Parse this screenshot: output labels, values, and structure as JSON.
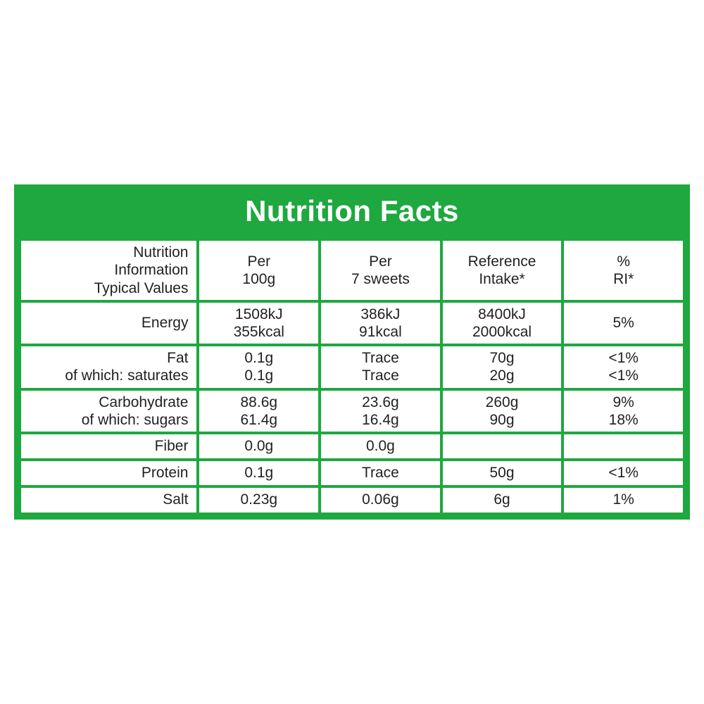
{
  "title": "Nutrition Facts",
  "colors": {
    "brand_green": "#1ea83f",
    "cell_bg": "#ffffff",
    "text": "#231f20"
  },
  "headers": {
    "label_l1": "Nutrition",
    "label_l2": "Information",
    "label_l3": "Typical Values",
    "per100_l1": "Per",
    "per100_l2": "100g",
    "perServ_l1": "Per",
    "perServ_l2": "7 sweets",
    "ref_l1": "Reference",
    "ref_l2": "Intake*",
    "ri_l1": "%",
    "ri_l2": "RI*"
  },
  "rows": {
    "energy": {
      "label": "Energy",
      "per100_l1": "1508kJ",
      "per100_l2": "355kcal",
      "perServ_l1": "386kJ",
      "perServ_l2": "91kcal",
      "ref_l1": "8400kJ",
      "ref_l2": "2000kcal",
      "ri": "5%"
    },
    "fat": {
      "label_l1": "Fat",
      "label_l2": "of which: saturates",
      "per100_l1": "0.1g",
      "per100_l2": "0.1g",
      "perServ_l1": "Trace",
      "perServ_l2": "Trace",
      "ref_l1": "70g",
      "ref_l2": "20g",
      "ri_l1": "<1%",
      "ri_l2": "<1%"
    },
    "carb": {
      "label_l1": "Carbohydrate",
      "label_l2": "of which: sugars",
      "per100_l1": "88.6g",
      "per100_l2": "61.4g",
      "perServ_l1": "23.6g",
      "perServ_l2": "16.4g",
      "ref_l1": "260g",
      "ref_l2": "90g",
      "ri_l1": "9%",
      "ri_l2": "18%"
    },
    "fiber": {
      "label": "Fiber",
      "per100": "0.0g",
      "perServ": "0.0g",
      "ref": "",
      "ri": ""
    },
    "protein": {
      "label": "Protein",
      "per100": "0.1g",
      "perServ": "Trace",
      "ref": "50g",
      "ri": "<1%"
    },
    "salt": {
      "label": "Salt",
      "per100": "0.23g",
      "perServ": "0.06g",
      "ref": "6g",
      "ri": "1%"
    }
  }
}
